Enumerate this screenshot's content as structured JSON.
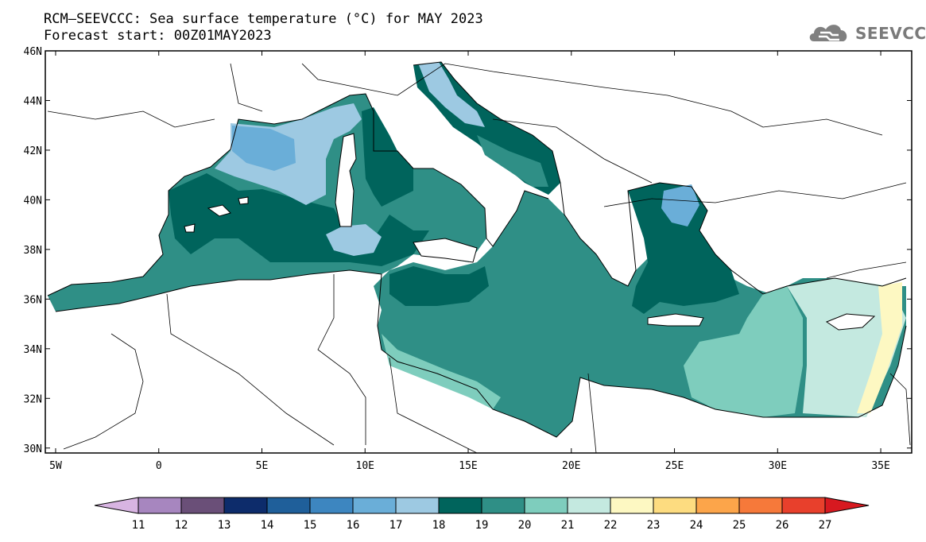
{
  "title": {
    "line1": "RCM–SEEVCCC: Sea surface temperature (°C) for MAY 2023",
    "line2": "Forecast start: 00Z01MAY2023"
  },
  "logo": {
    "text": "SEEVCCC",
    "icon": "cloud-logo-icon"
  },
  "map": {
    "lon_range": [
      -5.5,
      36.5
    ],
    "lat_range": [
      29.8,
      46
    ],
    "lon_ticks": [
      {
        "value": -5,
        "label": "5W"
      },
      {
        "value": 0,
        "label": "0"
      },
      {
        "value": 5,
        "label": "5E"
      },
      {
        "value": 10,
        "label": "10E"
      },
      {
        "value": 15,
        "label": "15E"
      },
      {
        "value": 20,
        "label": "20E"
      },
      {
        "value": 25,
        "label": "25E"
      },
      {
        "value": 30,
        "label": "30E"
      },
      {
        "value": 35,
        "label": "35E"
      }
    ],
    "lat_ticks": [
      {
        "value": 30,
        "label": "30N"
      },
      {
        "value": 32,
        "label": "32N"
      },
      {
        "value": 34,
        "label": "34N"
      },
      {
        "value": 36,
        "label": "36N"
      },
      {
        "value": 38,
        "label": "38N"
      },
      {
        "value": 40,
        "label": "40N"
      },
      {
        "value": 42,
        "label": "42N"
      },
      {
        "value": 44,
        "label": "44N"
      },
      {
        "value": 46,
        "label": "46N"
      }
    ]
  },
  "colorbar": {
    "labels": [
      "11",
      "12",
      "13",
      "14",
      "15",
      "16",
      "17",
      "18",
      "19",
      "20",
      "21",
      "22",
      "23",
      "24",
      "25",
      "26",
      "27"
    ],
    "colors": [
      "#d8b4e2",
      "#a786bf",
      "#6a4f78",
      "#0d2c6b",
      "#1f5f9a",
      "#3d86c0",
      "#6aaed8",
      "#9dc9e2",
      "#00645c",
      "#2f8f86",
      "#7ecdbd",
      "#c4e9e0",
      "#fdf8c2",
      "#fddc80",
      "#fca54a",
      "#f6793a",
      "#e8402c",
      "#d71920"
    ]
  }
}
